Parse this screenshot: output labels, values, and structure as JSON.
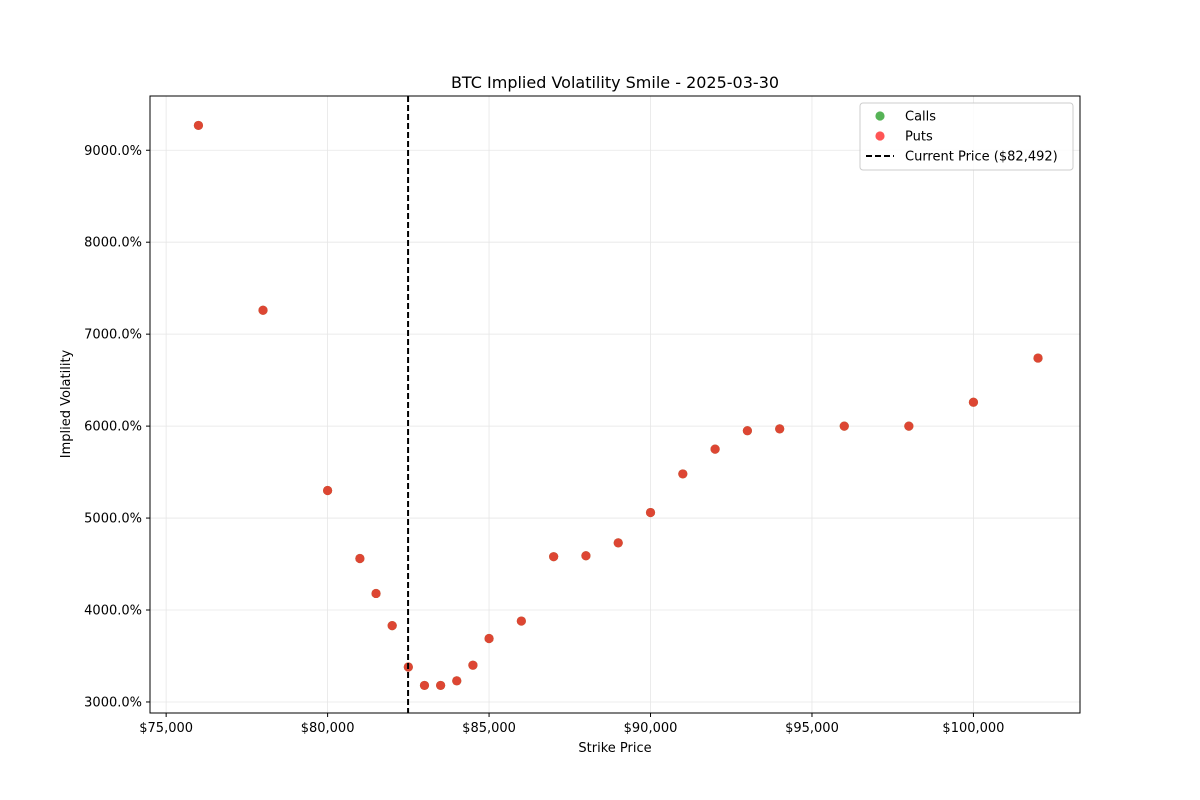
{
  "chart_data": {
    "type": "scatter",
    "title": "BTC Implied Volatility Smile - 2025-03-30",
    "xlabel": "Strike Price",
    "ylabel": "Implied Volatility",
    "xlim": [
      74500,
      103300
    ],
    "ylim": [
      2880,
      9590
    ],
    "xticks": [
      75000,
      80000,
      85000,
      90000,
      95000,
      100000
    ],
    "xtick_labels": [
      "$75,000",
      "$80,000",
      "$85,000",
      "$90,000",
      "$95,000",
      "$100,000"
    ],
    "yticks": [
      3000,
      4000,
      5000,
      6000,
      7000,
      8000,
      9000
    ],
    "ytick_labels": [
      "3000.0%",
      "4000.0%",
      "5000.0%",
      "6000.0%",
      "7000.0%",
      "8000.0%",
      "9000.0%"
    ],
    "grid": true,
    "legend_position": "top-right",
    "legend": [
      {
        "label": "Calls",
        "kind": "marker",
        "color": "#2ca02c"
      },
      {
        "label": "Puts",
        "kind": "marker",
        "color": "#ff2a2a"
      },
      {
        "label": "Current Price ($82,492)",
        "kind": "dashed-line",
        "color": "#000000"
      }
    ],
    "current_price": 82492,
    "series": [
      {
        "name": "Calls",
        "color": "#2ca02c",
        "points": [
          [
            76000,
            9270
          ],
          [
            78000,
            7260
          ],
          [
            80000,
            5300
          ],
          [
            81000,
            4560
          ],
          [
            81500,
            4180
          ],
          [
            82000,
            3830
          ],
          [
            82500,
            3380
          ],
          [
            83000,
            3180
          ],
          [
            83500,
            3180
          ],
          [
            84000,
            3230
          ],
          [
            84500,
            3400
          ],
          [
            85000,
            3690
          ],
          [
            86000,
            3880
          ],
          [
            87000,
            4580
          ],
          [
            88000,
            4590
          ],
          [
            89000,
            4730
          ],
          [
            90000,
            5060
          ],
          [
            91000,
            5480
          ],
          [
            92000,
            5750
          ],
          [
            93000,
            5950
          ],
          [
            94000,
            5970
          ],
          [
            96000,
            6000
          ],
          [
            98000,
            6000
          ],
          [
            100000,
            6260
          ],
          [
            102000,
            6740
          ]
        ]
      },
      {
        "name": "Puts",
        "color": "#ff2a2a",
        "points": [
          [
            76000,
            9270
          ],
          [
            78000,
            7260
          ],
          [
            80000,
            5300
          ],
          [
            81000,
            4560
          ],
          [
            81500,
            4180
          ],
          [
            82000,
            3830
          ],
          [
            82500,
            3380
          ],
          [
            83000,
            3180
          ],
          [
            83500,
            3180
          ],
          [
            84000,
            3230
          ],
          [
            84500,
            3400
          ],
          [
            85000,
            3690
          ],
          [
            86000,
            3880
          ],
          [
            87000,
            4580
          ],
          [
            88000,
            4590
          ],
          [
            89000,
            4730
          ],
          [
            90000,
            5060
          ],
          [
            91000,
            5480
          ],
          [
            92000,
            5750
          ],
          [
            93000,
            5950
          ],
          [
            94000,
            5970
          ],
          [
            96000,
            6000
          ],
          [
            98000,
            6000
          ],
          [
            100000,
            6260
          ],
          [
            102000,
            6740
          ]
        ]
      }
    ]
  }
}
